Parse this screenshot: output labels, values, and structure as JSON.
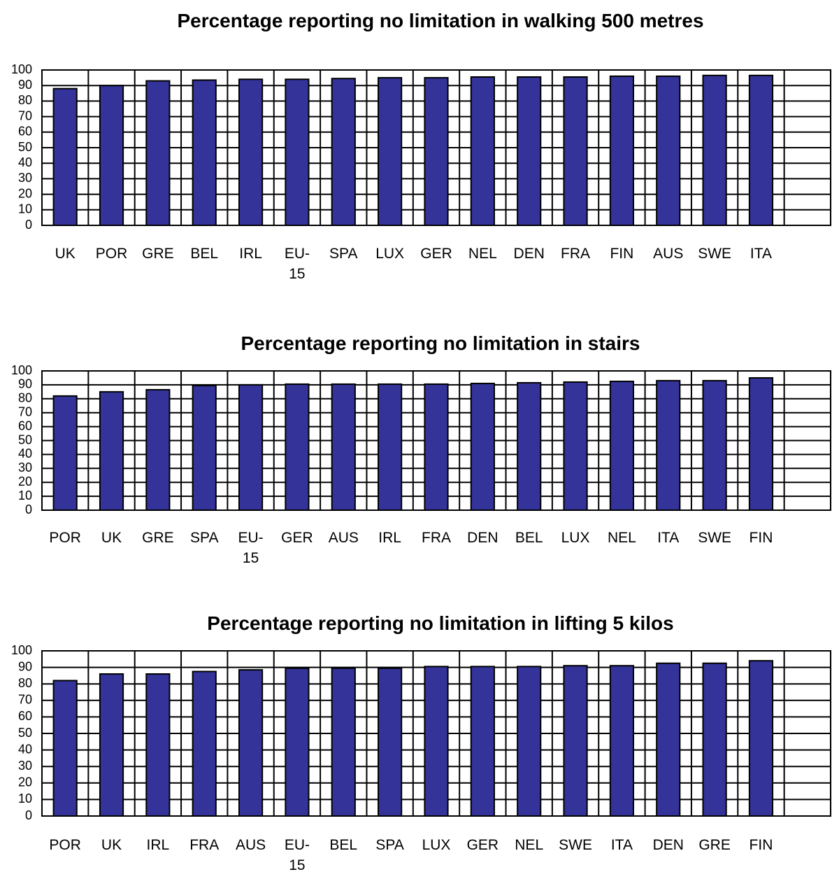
{
  "chart_data": [
    {
      "type": "bar",
      "title": "Percentage reporting no limitation in walking 500 metres",
      "categories": [
        "UK",
        "POR",
        "GRE",
        "BEL",
        "IRL",
        "EU-15",
        "SPA",
        "LUX",
        "GER",
        "NEL",
        "DEN",
        "FRA",
        "FIN",
        "AUS",
        "SWE",
        "ITA"
      ],
      "values": [
        88,
        90,
        93,
        93.5,
        94,
        94,
        94.5,
        95,
        95,
        95.5,
        95.5,
        95.5,
        96,
        96,
        96.5,
        96.5
      ],
      "color": "#333399",
      "ylim": [
        0,
        100
      ],
      "yticks": [
        0,
        10,
        20,
        30,
        40,
        50,
        60,
        70,
        80,
        90,
        100
      ],
      "grid": true
    },
    {
      "type": "bar",
      "title": "Percentage reporting no limitation in stairs",
      "categories": [
        "POR",
        "UK",
        "GRE",
        "SPA",
        "EU-15",
        "GER",
        "AUS",
        "IRL",
        "FRA",
        "DEN",
        "BEL",
        "LUX",
        "NEL",
        "ITA",
        "SWE",
        "FIN"
      ],
      "values": [
        82,
        85,
        86.5,
        89.5,
        90,
        90.5,
        90.5,
        90.5,
        90.5,
        91,
        91.5,
        92,
        92.5,
        93,
        93,
        95
      ],
      "color": "#333399",
      "ylim": [
        0,
        100
      ],
      "yticks": [
        0,
        10,
        20,
        30,
        40,
        50,
        60,
        70,
        80,
        90,
        100
      ],
      "grid": true
    },
    {
      "type": "bar",
      "title": "Percentage reporting no limitation in lifting 5 kilos",
      "categories": [
        "POR",
        "UK",
        "IRL",
        "FRA",
        "AUS",
        "EU-15",
        "BEL",
        "SPA",
        "LUX",
        "GER",
        "NEL",
        "SWE",
        "ITA",
        "DEN",
        "GRE",
        "FIN"
      ],
      "values": [
        82,
        86,
        86,
        87.5,
        88.5,
        89.5,
        89.5,
        89.5,
        90.5,
        90.5,
        90.5,
        91,
        91,
        92.5,
        92.5,
        94
      ],
      "color": "#333399",
      "ylim": [
        0,
        100
      ],
      "yticks": [
        0,
        10,
        20,
        30,
        40,
        50,
        60,
        70,
        80,
        90,
        100
      ],
      "grid": true
    }
  ]
}
